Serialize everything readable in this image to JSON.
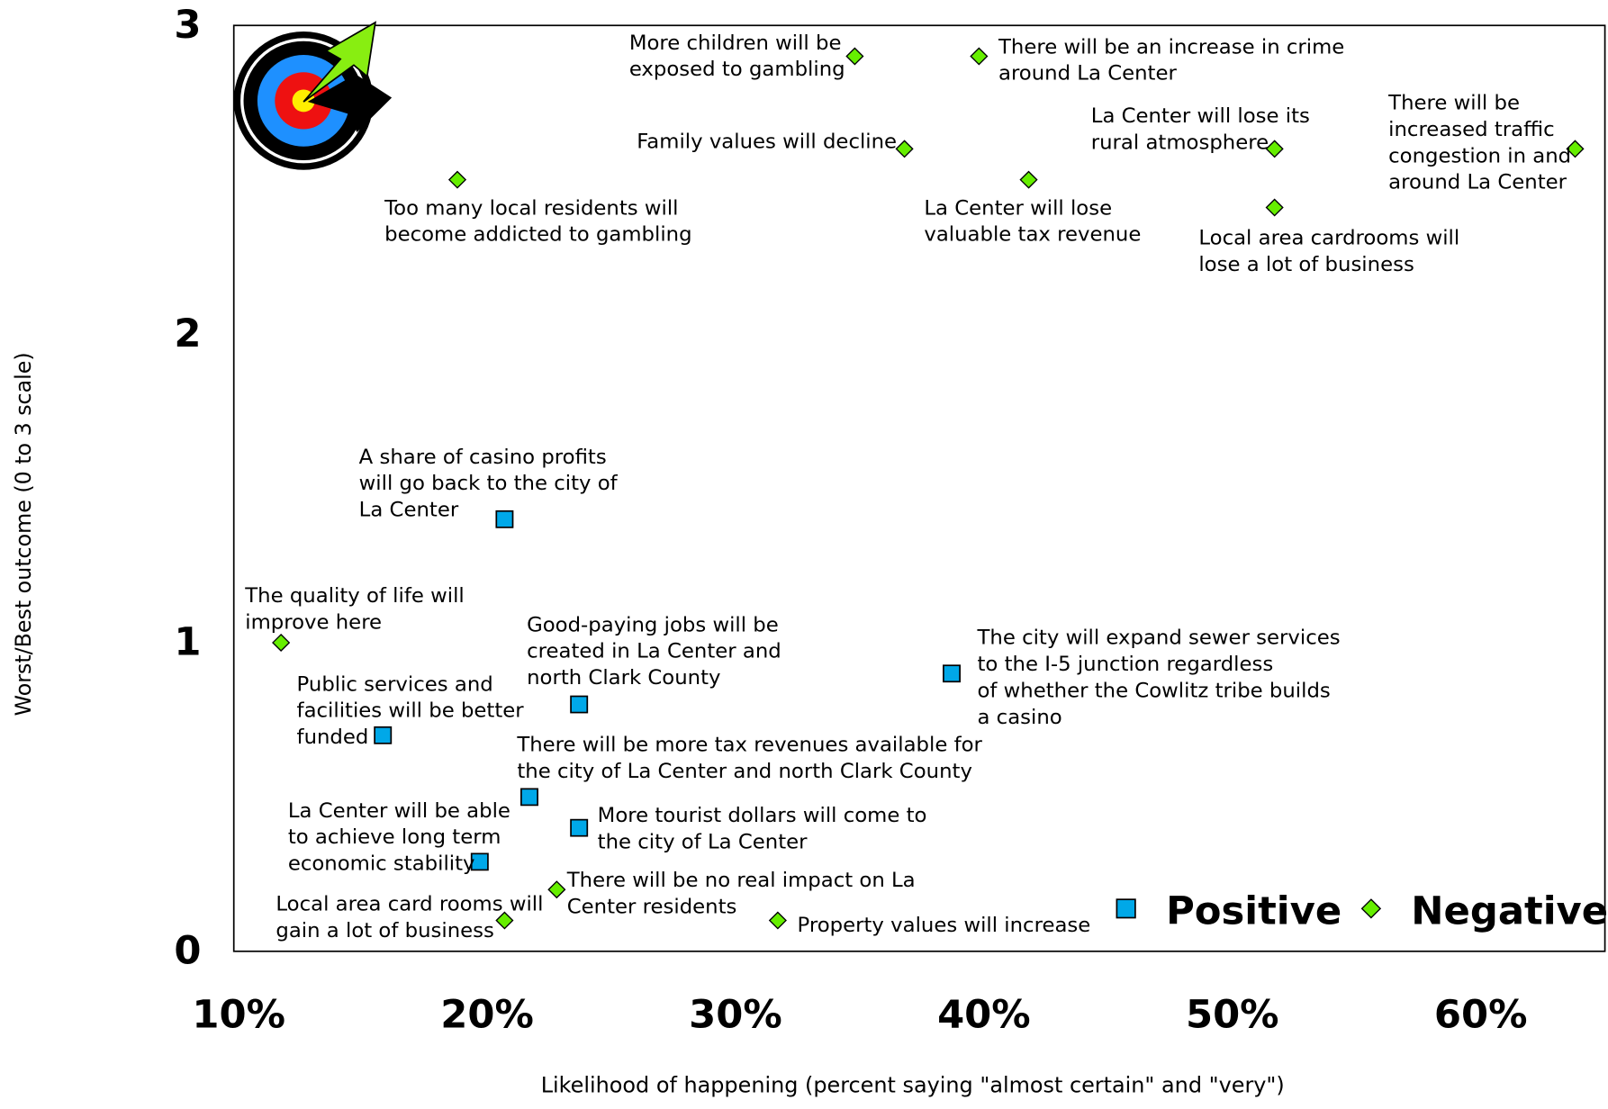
{
  "chart_data": {
    "type": "scatter",
    "x_label": "Likelihood of happening (percent saying \"almost certain\" and \"very\")",
    "y_label": "Worst/Best outcome (0 to 3 scale)",
    "xlim": [
      9.8,
      65
    ],
    "ylim": [
      0,
      3
    ],
    "xticks": [
      {
        "value": 10,
        "label": "10%"
      },
      {
        "value": 20,
        "label": "20%"
      },
      {
        "value": 30,
        "label": "30%"
      },
      {
        "value": 40,
        "label": "40%"
      },
      {
        "value": 50,
        "label": "50%"
      },
      {
        "value": 60,
        "label": "60%"
      }
    ],
    "yticks": [
      0,
      1,
      2,
      3
    ],
    "legend": "lower right",
    "series": [
      {
        "name": "Positive",
        "color": "#00a8e8",
        "marker": "square",
        "x": [
          20.7,
          23.7,
          38.7,
          15.8,
          21.7,
          23.7,
          19.7
        ],
        "values": [
          1.4,
          0.8,
          0.9,
          0.7,
          0.5,
          0.4,
          0.29
        ],
        "labels": [
          "A share of casino profits will go back to the city of La Center",
          "Good-paying jobs will be created in La Center and north Clark County",
          "The city will expand sewer services to the I-5 junction regardless of whether the Cowlitz tribe builds a casino",
          "Public services and facilities will be better funded",
          "There will be more tax revenues available for the city of La Center and north Clark County",
          "More tourist dollars will come to the city of La Center",
          "La Center will be able to achieve long term economic stability"
        ]
      },
      {
        "name": "Negative",
        "color": "#66ee00",
        "marker": "diamond",
        "x": [
          34.8,
          39.8,
          36.8,
          51.7,
          63.8,
          18.8,
          41.8,
          51.7,
          11.7,
          22.8,
          20.7,
          31.7
        ],
        "values": [
          2.9,
          2.9,
          2.6,
          2.6,
          2.6,
          2.5,
          2.5,
          2.41,
          1.0,
          0.2,
          0.1,
          0.1
        ],
        "labels": [
          "More children will be exposed to gambling",
          "There will be an increase in crime around La Center",
          "Family values will decline",
          "La Center will lose its rural atmosphere",
          "There will be increased traffic congestion in and around La Center",
          "Too many local residents will become addicted to gambling",
          "La Center will lose valuable tax revenue",
          "Local area cardrooms will lose a lot of business",
          "The quality of life will improve here",
          "There will be no real impact on La Center residents",
          "Local area card rooms will gain a lot of business",
          "Property values will increase"
        ]
      }
    ]
  }
}
